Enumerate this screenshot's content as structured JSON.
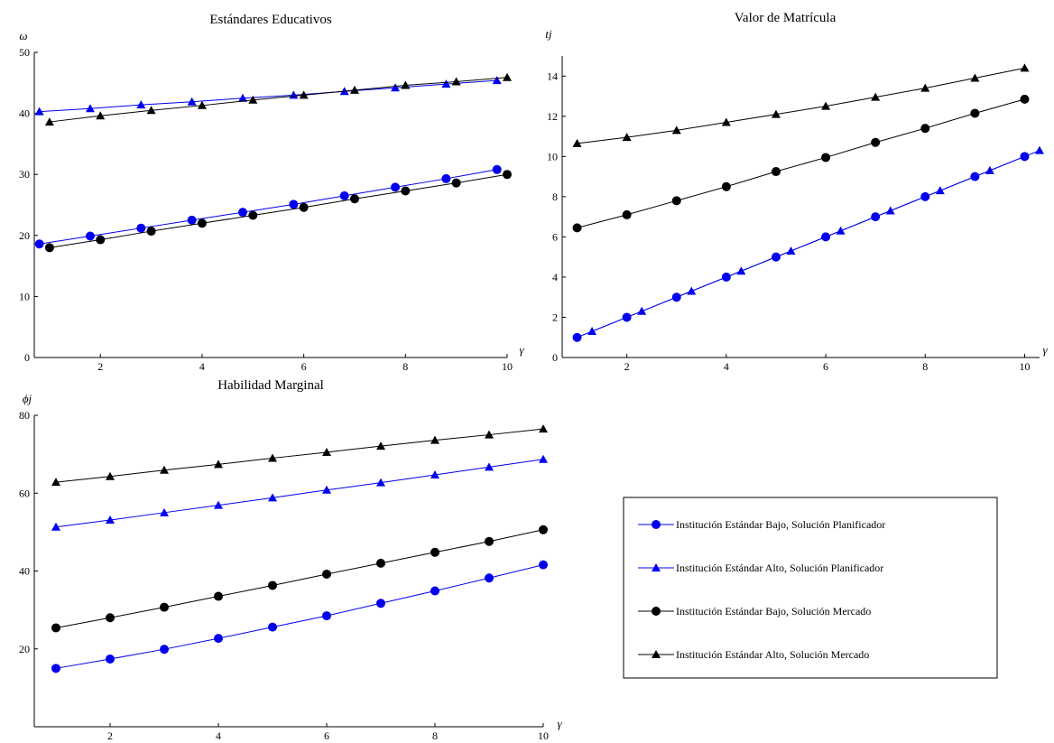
{
  "colors": {
    "blue": "#0000ee",
    "black": "#000000"
  },
  "legend": {
    "entries": [
      {
        "label": "Institución Estándar Bajo, Solución Planificador",
        "color": "#0000ee",
        "marker": "circle"
      },
      {
        "label": "Institución Estándar Alto, Solución Planificador",
        "color": "#0000ee",
        "marker": "triangle"
      },
      {
        "label": "Institución Estándar Bajo, Solución Mercado",
        "color": "#000000",
        "marker": "circle"
      },
      {
        "label": "Institución Estándar Alto, Solución Mercado",
        "color": "#000000",
        "marker": "triangle"
      }
    ]
  },
  "chart_data": [
    {
      "type": "line",
      "title": "Estándares Educativos",
      "xlabel": "γ",
      "ylabel": "ω",
      "xlim": [
        0.7,
        10
      ],
      "ylim": [
        0,
        50
      ],
      "xticks": [
        2,
        4,
        6,
        8,
        10
      ],
      "yticks": [
        0,
        10,
        20,
        30,
        40,
        50
      ],
      "series": [
        {
          "color": "#0000ee",
          "marker": "circle",
          "x": [
            0.8,
            1.8,
            2.8,
            3.8,
            4.8,
            5.8,
            6.8,
            7.8,
            8.8,
            9.8
          ],
          "y": [
            18.6,
            19.9,
            21.2,
            22.5,
            23.8,
            25.1,
            26.5,
            27.9,
            29.3,
            30.8
          ]
        },
        {
          "color": "#0000ee",
          "marker": "triangle",
          "x": [
            0.8,
            1.8,
            2.8,
            3.8,
            4.8,
            5.8,
            6.8,
            7.8,
            8.8,
            9.8
          ],
          "y": [
            40.3,
            40.8,
            41.4,
            41.9,
            42.5,
            43.0,
            43.6,
            44.2,
            44.8,
            45.4
          ]
        },
        {
          "color": "#000000",
          "marker": "circle",
          "x": [
            1,
            2,
            3,
            4,
            5,
            6,
            7,
            8,
            9,
            10
          ],
          "y": [
            18.0,
            19.3,
            20.7,
            22.0,
            23.3,
            24.6,
            26.0,
            27.3,
            28.6,
            30.0
          ]
        },
        {
          "color": "#000000",
          "marker": "triangle",
          "x": [
            1,
            2,
            3,
            4,
            5,
            6,
            7,
            8,
            9,
            10
          ],
          "y": [
            38.6,
            39.6,
            40.5,
            41.3,
            42.2,
            43.0,
            43.8,
            44.6,
            45.2,
            45.9
          ]
        }
      ]
    },
    {
      "type": "line",
      "title": "Valor de Matrícula",
      "xlabel": "γ",
      "ylabel": "tj",
      "xlim": [
        0.7,
        10.3
      ],
      "ylim": [
        0,
        15
      ],
      "xticks": [
        2,
        4,
        6,
        8,
        10
      ],
      "yticks": [
        0,
        2,
        4,
        6,
        8,
        10,
        12,
        14
      ],
      "series": [
        {
          "color": "#0000ee",
          "marker": "circle",
          "x": [
            1,
            2,
            3,
            4,
            5,
            6,
            7,
            8,
            9,
            10
          ],
          "y": [
            1,
            2,
            3,
            4,
            5,
            6,
            7,
            8,
            9,
            10
          ]
        },
        {
          "color": "#0000ee",
          "marker": "triangle",
          "x": [
            1.3,
            2.3,
            3.3,
            4.3,
            5.3,
            6.3,
            7.3,
            8.3,
            9.3,
            10.3
          ],
          "y": [
            1.3,
            2.3,
            3.3,
            4.3,
            5.3,
            6.3,
            7.3,
            8.3,
            9.3,
            10.3
          ]
        },
        {
          "color": "#000000",
          "marker": "circle",
          "x": [
            1,
            2,
            3,
            4,
            5,
            6,
            7,
            8,
            9,
            10
          ],
          "y": [
            6.45,
            7.1,
            7.8,
            8.5,
            9.25,
            9.95,
            10.7,
            11.4,
            12.15,
            12.85
          ]
        },
        {
          "color": "#000000",
          "marker": "triangle",
          "x": [
            1,
            2,
            3,
            4,
            5,
            6,
            7,
            8,
            9,
            10
          ],
          "y": [
            10.65,
            10.95,
            11.3,
            11.7,
            12.1,
            12.5,
            12.95,
            13.4,
            13.9,
            14.4
          ]
        }
      ]
    },
    {
      "type": "line",
      "title": "Habilidad Marginal",
      "xlabel": "γ",
      "ylabel": "ϕj",
      "xlim": [
        0.6,
        10
      ],
      "ylim": [
        0,
        80
      ],
      "xticks": [
        2,
        4,
        6,
        8,
        10
      ],
      "yticks": [
        20,
        40,
        60,
        80
      ],
      "series": [
        {
          "color": "#0000ee",
          "marker": "circle",
          "x": [
            1,
            2,
            3,
            4,
            5,
            6,
            7,
            8,
            9,
            10
          ],
          "y": [
            15.0,
            17.4,
            19.9,
            22.7,
            25.6,
            28.5,
            31.7,
            34.9,
            38.2,
            41.6
          ]
        },
        {
          "color": "#0000ee",
          "marker": "triangle",
          "x": [
            1,
            2,
            3,
            4,
            5,
            6,
            7,
            8,
            9,
            10
          ],
          "y": [
            51.3,
            53.1,
            55.0,
            56.9,
            58.8,
            60.8,
            62.7,
            64.7,
            66.7,
            68.7
          ]
        },
        {
          "color": "#000000",
          "marker": "circle",
          "x": [
            1,
            2,
            3,
            4,
            5,
            6,
            7,
            8,
            9,
            10
          ],
          "y": [
            25.4,
            28.0,
            30.7,
            33.5,
            36.3,
            39.2,
            42.0,
            44.8,
            47.6,
            50.6
          ]
        },
        {
          "color": "#000000",
          "marker": "triangle",
          "x": [
            1,
            2,
            3,
            4,
            5,
            6,
            7,
            8,
            9,
            10
          ],
          "y": [
            62.8,
            64.3,
            65.9,
            67.4,
            69.0,
            70.5,
            72.1,
            73.6,
            75.0,
            76.5
          ]
        }
      ]
    }
  ]
}
